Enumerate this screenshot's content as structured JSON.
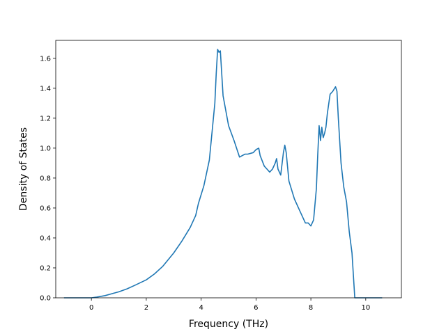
{
  "chart_data": {
    "type": "line",
    "xlabel": "Frequency (THz)",
    "ylabel": "Density of States",
    "xlim": [
      -1.3,
      11.3
    ],
    "ylim": [
      0,
      1.72
    ],
    "xticks": [
      0,
      2,
      4,
      6,
      8,
      10
    ],
    "yticks": [
      0.0,
      0.2,
      0.4,
      0.6,
      0.8,
      1.0,
      1.2,
      1.4,
      1.6
    ],
    "xtick_labels": [
      "0",
      "2",
      "4",
      "6",
      "8",
      "10"
    ],
    "ytick_labels": [
      "0.0",
      "0.2",
      "0.4",
      "0.6",
      "0.8",
      "1.0",
      "1.2",
      "1.4",
      "1.6"
    ],
    "grid": false,
    "line_color": "#1f77b4",
    "series": [
      {
        "x": [
          -1.0,
          -0.5,
          0.0,
          0.2,
          0.5,
          0.8,
          1.0,
          1.3,
          1.6,
          2.0,
          2.3,
          2.6,
          3.0,
          3.3,
          3.6,
          3.8,
          3.9,
          4.1,
          4.3,
          4.5,
          4.55,
          4.6,
          4.65,
          4.7,
          4.8,
          5.0,
          5.2,
          5.4,
          5.5,
          5.6,
          5.7,
          5.9,
          6.0,
          6.1,
          6.15,
          6.3,
          6.4,
          6.5,
          6.6,
          6.7,
          6.75,
          6.8,
          6.9,
          7.0,
          7.05,
          7.1,
          7.2,
          7.4,
          7.6,
          7.8,
          7.9,
          8.0,
          8.1,
          8.2,
          8.25,
          8.3,
          8.35,
          8.4,
          8.45,
          8.5,
          8.55,
          8.6,
          8.7,
          8.8,
          8.9,
          8.95,
          9.0,
          9.1,
          9.2,
          9.3,
          9.4,
          9.5,
          9.6,
          9.7,
          10.0,
          10.6
        ],
        "y": [
          0.0,
          0.0,
          0.0,
          0.005,
          0.015,
          0.03,
          0.04,
          0.06,
          0.085,
          0.12,
          0.16,
          0.21,
          0.3,
          0.38,
          0.47,
          0.55,
          0.63,
          0.75,
          0.92,
          1.3,
          1.5,
          1.66,
          1.64,
          1.65,
          1.35,
          1.15,
          1.05,
          0.94,
          0.95,
          0.96,
          0.96,
          0.97,
          0.99,
          1.0,
          0.95,
          0.88,
          0.86,
          0.84,
          0.86,
          0.9,
          0.93,
          0.86,
          0.82,
          0.97,
          1.02,
          0.97,
          0.78,
          0.66,
          0.58,
          0.5,
          0.5,
          0.48,
          0.52,
          0.73,
          0.95,
          1.15,
          1.05,
          1.14,
          1.07,
          1.1,
          1.14,
          1.23,
          1.36,
          1.38,
          1.41,
          1.38,
          1.2,
          0.9,
          0.74,
          0.64,
          0.44,
          0.3,
          0.0,
          0.0,
          0.0,
          0.0
        ]
      }
    ]
  }
}
